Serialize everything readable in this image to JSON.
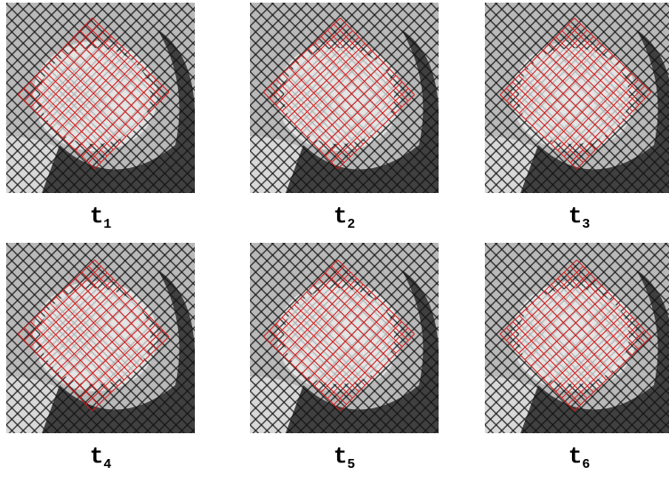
{
  "panels": [
    {
      "label": "t",
      "subscript": "1"
    },
    {
      "label": "t",
      "subscript": "2"
    },
    {
      "label": "t",
      "subscript": "3"
    },
    {
      "label": "t",
      "subscript": "4"
    },
    {
      "label": "t",
      "subscript": "5"
    },
    {
      "label": "t",
      "subscript": "6"
    }
  ]
}
